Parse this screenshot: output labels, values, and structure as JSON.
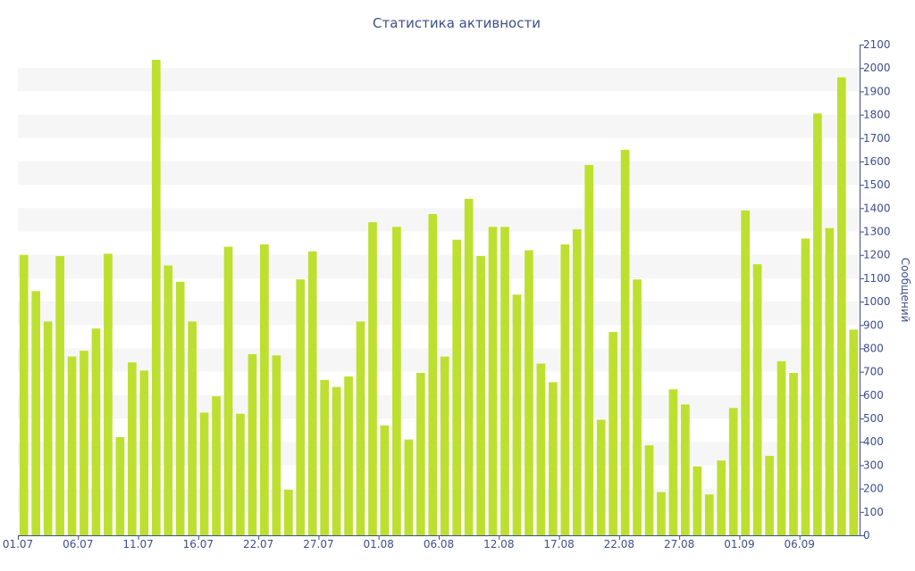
{
  "chart_data": {
    "type": "bar",
    "title": "Статистика активности",
    "ylabel": "Сообщений",
    "xlabel": "",
    "ylim": [
      0,
      2100
    ],
    "y_ticks": [
      0,
      100,
      200,
      300,
      400,
      500,
      600,
      700,
      800,
      900,
      1000,
      1100,
      1200,
      1300,
      1400,
      1500,
      1600,
      1700,
      1800,
      1900,
      2000,
      2100
    ],
    "y_axis_side": "right",
    "grid": "alternating horizontal bands",
    "legend": "none",
    "bar_color": "#bde030",
    "band_color": "#f6f6f6",
    "text_color": "#3e4e8c",
    "x_tick_labels": [
      {
        "index": 0,
        "label": "01.07"
      },
      {
        "index": 5,
        "label": "06.07"
      },
      {
        "index": 10,
        "label": "11.07"
      },
      {
        "index": 15,
        "label": "16.07"
      },
      {
        "index": 20,
        "label": "22.07"
      },
      {
        "index": 25,
        "label": "27.07"
      },
      {
        "index": 30,
        "label": "01.08"
      },
      {
        "index": 35,
        "label": "06.08"
      },
      {
        "index": 40,
        "label": "12.08"
      },
      {
        "index": 45,
        "label": "17.08"
      },
      {
        "index": 50,
        "label": "22.08"
      },
      {
        "index": 55,
        "label": "27.08"
      },
      {
        "index": 60,
        "label": "01.09"
      },
      {
        "index": 65,
        "label": "06.09"
      }
    ],
    "values": [
      1200,
      1045,
      915,
      1195,
      765,
      790,
      885,
      1205,
      420,
      740,
      705,
      2035,
      1155,
      1085,
      915,
      525,
      595,
      1235,
      520,
      775,
      1245,
      770,
      195,
      1095,
      1215,
      665,
      635,
      680,
      915,
      1340,
      470,
      1320,
      410,
      695,
      1375,
      765,
      1265,
      1440,
      1195,
      1320,
      1320,
      1030,
      1220,
      735,
      655,
      1245,
      1310,
      1585,
      495,
      870,
      1650,
      1095,
      385,
      185,
      625,
      560,
      295,
      175,
      320,
      545,
      1390,
      1160,
      340,
      745,
      695,
      1270,
      1805,
      1315,
      1960,
      880
    ]
  }
}
